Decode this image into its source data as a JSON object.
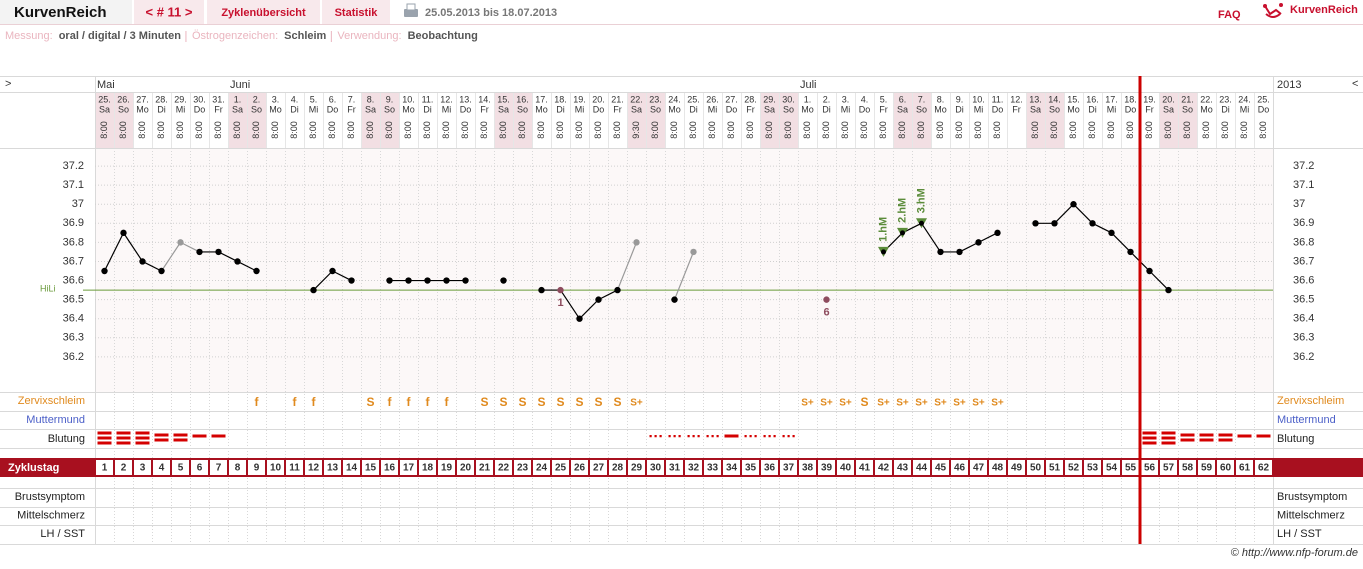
{
  "header": {
    "brand": "KurvenReich",
    "cycle_nav": "< # 11 >",
    "tabs": [
      "Zyklenübersicht",
      "Statistik"
    ],
    "date_range": "25.05.2013 bis 18.07.2013",
    "faq": "FAQ",
    "logo_text": "KurvenReich"
  },
  "settings_bar": [
    {
      "label": "Messung:",
      "value": "oral / digital / 3 Minuten"
    },
    {
      "label": "Östrogenzeichen:",
      "value": "Schleim"
    },
    {
      "label": "Verwendung:",
      "value": "Beobachtung"
    }
  ],
  "nav_arrows": [
    ">",
    "<"
  ],
  "chart_data": {
    "type": "line",
    "year": "2013",
    "months": [
      {
        "label": "Mai",
        "day": 1
      },
      {
        "label": "Juni",
        "day": 8
      },
      {
        "label": "Juli",
        "day": 38
      }
    ],
    "categories": [
      1,
      2,
      3,
      4,
      5,
      6,
      7,
      8,
      9,
      10,
      11,
      12,
      13,
      14,
      15,
      16,
      17,
      18,
      19,
      20,
      21,
      22,
      23,
      24,
      25,
      26,
      27,
      28,
      29,
      30,
      31,
      32,
      33,
      34,
      35,
      36,
      37,
      38,
      39,
      40,
      41,
      42,
      43,
      44,
      45,
      46,
      47,
      48,
      49,
      50,
      51,
      52,
      53,
      54,
      55,
      56,
      57,
      58,
      59,
      60,
      61,
      62
    ],
    "dates": [
      "25.",
      "26.",
      "27.",
      "28.",
      "29.",
      "30.",
      "31.",
      "1.",
      "2.",
      "3.",
      "4.",
      "5.",
      "6.",
      "7.",
      "8.",
      "9.",
      "10.",
      "11.",
      "12.",
      "13.",
      "14.",
      "15.",
      "16.",
      "17.",
      "18.",
      "19.",
      "20.",
      "21.",
      "22.",
      "23.",
      "24.",
      "25.",
      "26.",
      "27.",
      "28.",
      "29.",
      "30.",
      "1.",
      "2.",
      "3.",
      "4.",
      "5.",
      "6.",
      "7.",
      "8.",
      "9.",
      "10.",
      "11.",
      "12.",
      "13.",
      "14.",
      "15.",
      "16.",
      "17.",
      "18.",
      "19.",
      "20.",
      "21.",
      "22.",
      "23.",
      "24.",
      "25."
    ],
    "weekdays": [
      "Sa",
      "So",
      "Mo",
      "Di",
      "Mi",
      "Do",
      "Fr",
      "Sa",
      "So",
      "Mo",
      "Di",
      "Mi",
      "Do",
      "Fr",
      "Sa",
      "So",
      "Mo",
      "Di",
      "Mi",
      "Do",
      "Fr",
      "Sa",
      "So",
      "Mo",
      "Di",
      "Mi",
      "Do",
      "Fr",
      "Sa",
      "So",
      "Mo",
      "Di",
      "Mi",
      "Do",
      "Fr",
      "Sa",
      "So",
      "Mo",
      "Di",
      "Mi",
      "Do",
      "Fr",
      "Sa",
      "So",
      "Mo",
      "Di",
      "Mi",
      "Do",
      "Fr",
      "Sa",
      "So",
      "Mo",
      "Di",
      "Mi",
      "Do",
      "Fr",
      "Sa",
      "So",
      "Mo",
      "Di",
      "Mi",
      "Do"
    ],
    "times": [
      "8:00",
      "8:00",
      "8:00",
      "8:00",
      "8:00",
      "8:00",
      "8:00",
      "8:00",
      "8:00",
      "8:00",
      "8:00",
      "8:00",
      "8:00",
      "8:00",
      "8:00",
      "8:00",
      "8:00",
      "8:00",
      "8:00",
      "8:00",
      "8:00",
      "8:00",
      "8:00",
      "8:00",
      "8:00",
      "8:00",
      "8:00",
      "8:00",
      "9:30",
      "8:00",
      "8:00",
      "8:00",
      "8:00",
      "8:00",
      "8:00",
      "8:00",
      "8:00",
      "8:00",
      "8:00",
      "8:00",
      "8:00",
      "8:00",
      "8:00",
      "8:00",
      "8:00",
      "8:00",
      "8:00",
      "8:00",
      null,
      "8:00",
      "8:00",
      "8:00",
      "8:00",
      "8:00",
      "8:00",
      "8:00",
      "8:00",
      "8:00",
      "8:00",
      "8:00",
      "8:00",
      "8:00"
    ],
    "values": [
      36.65,
      36.85,
      36.7,
      36.65,
      36.8,
      36.75,
      36.75,
      36.7,
      36.65,
      null,
      null,
      36.55,
      36.65,
      36.6,
      null,
      36.6,
      36.6,
      36.6,
      36.6,
      36.6,
      null,
      36.6,
      null,
      36.55,
      36.55,
      36.4,
      36.5,
      36.55,
      36.8,
      null,
      36.5,
      36.75,
      null,
      null,
      null,
      null,
      null,
      null,
      36.5,
      null,
      null,
      36.75,
      36.85,
      36.9,
      36.75,
      36.75,
      36.8,
      36.85,
      null,
      36.9,
      36.9,
      37,
      36.9,
      36.85,
      36.75,
      36.65,
      36.55,
      null,
      null,
      null,
      null,
      null
    ],
    "color": "#000000",
    "excluded_color": "#999999",
    "excluded_days": [
      5,
      29,
      32
    ],
    "point_notes": [
      {
        "day": 25,
        "label": "1"
      },
      {
        "day": 39,
        "label": "6"
      }
    ],
    "note_color": "#8e4c5e",
    "hm_notes": [
      {
        "day": 42,
        "label": "1.hM"
      },
      {
        "day": 43,
        "label": "2.hM"
      },
      {
        "day": 44,
        "label": "3.hM"
      }
    ],
    "hm_color": "#5b8c3a",
    "hili": {
      "label": "HiLi",
      "value": 36.55
    },
    "ylim": [
      36.0,
      37.3
    ],
    "yticks": [
      36.2,
      36.3,
      36.4,
      36.5,
      36.6,
      36.7,
      36.8,
      36.9,
      37,
      37.1,
      37.2
    ],
    "grid": true,
    "cycle_end_day": 56
  },
  "rows": {
    "zervixschleim": {
      "label": "Zervixschleim",
      "values": [
        null,
        null,
        null,
        null,
        null,
        null,
        null,
        null,
        "f",
        null,
        "f",
        "f",
        null,
        null,
        "S",
        "f",
        "f",
        "f",
        "f",
        null,
        "S",
        "S",
        "S",
        "S",
        "S",
        "S",
        "S",
        "S",
        "S+",
        null,
        null,
        null,
        null,
        null,
        null,
        null,
        null,
        "S+",
        "S+",
        "S+",
        "S",
        "S+",
        "S+",
        "S+",
        "S+",
        "S+",
        "S+",
        "S+",
        null,
        null,
        null,
        null,
        null,
        null,
        null,
        null,
        null,
        null,
        null,
        null,
        null,
        null
      ]
    },
    "muttermund": {
      "label": "Muttermund"
    },
    "blutung": {
      "label": "Blutung",
      "values": [
        3,
        3,
        3,
        2,
        2,
        1,
        1,
        null,
        null,
        null,
        null,
        null,
        null,
        null,
        null,
        null,
        null,
        null,
        null,
        null,
        null,
        null,
        null,
        null,
        null,
        null,
        null,
        null,
        null,
        0,
        0,
        0,
        0,
        1,
        0,
        0,
        0,
        null,
        null,
        null,
        null,
        null,
        null,
        null,
        null,
        null,
        null,
        null,
        null,
        null,
        null,
        null,
        null,
        null,
        null,
        3,
        3,
        2,
        2,
        2,
        1,
        1
      ]
    },
    "zyklustag": {
      "label": "Zyklustag"
    },
    "bottom": [
      "Brustsymptom",
      "Mittelschmerz",
      "LH / SST"
    ]
  },
  "footer": "© http://www.nfp-forum.de"
}
